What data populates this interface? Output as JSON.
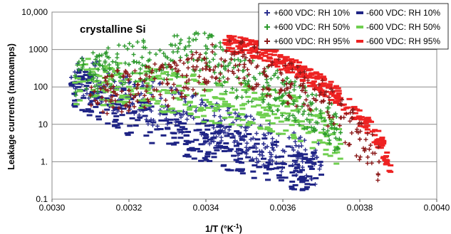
{
  "chart_data": {
    "type": "scatter",
    "title": "",
    "annotation": "crystalline Si",
    "xlabel": "1/T (°K",
    "xlabel_sup": "-1",
    "xlabel_end": ")",
    "ylabel": "Leakage currents (nanoamps)",
    "xlim": [
      0.003,
      0.004
    ],
    "ylim": [
      0.1,
      10000
    ],
    "yscale": "log",
    "grid": "horizontal",
    "legend_position": "top-right",
    "x_ticks": [
      "0.0030",
      "0.0032",
      "0.0034",
      "0.0036",
      "0.0038",
      "0.0040"
    ],
    "y_ticks": [
      "0.1",
      "1.",
      "10",
      "100",
      "1000",
      "10,000"
    ],
    "series": [
      {
        "name": "+600 VDC: RH 10%",
        "marker": "+",
        "color": "#2b2f8f",
        "x": [
          0.00305,
          0.00308,
          0.00312,
          0.00316,
          0.0032,
          0.00325,
          0.0033,
          0.00335,
          0.0034,
          0.00345,
          0.0035,
          0.00355,
          0.0036,
          0.00365,
          0.0037
        ],
        "y": [
          180,
          150,
          120,
          90,
          60,
          40,
          30,
          20,
          12,
          8,
          5,
          3,
          2,
          1.2,
          0.8
        ]
      },
      {
        "name": "-600 VDC: RH 10%",
        "marker": "-",
        "color": "#1f2485",
        "x": [
          0.00305,
          0.00308,
          0.00312,
          0.00316,
          0.0032,
          0.00325,
          0.0033,
          0.00335,
          0.0034,
          0.00345,
          0.0035,
          0.00355,
          0.0036,
          0.00365,
          0.0037
        ],
        "y": [
          120,
          80,
          50,
          35,
          20,
          12,
          8,
          5,
          3.5,
          2.5,
          1.8,
          1.2,
          0.9,
          0.6,
          0.45
        ]
      },
      {
        "name": "+600 VDC: RH 50%",
        "marker": "+",
        "color": "#2e9a2e",
        "x": [
          0.00306,
          0.0031,
          0.00315,
          0.0032,
          0.00325,
          0.0033,
          0.00335,
          0.0034,
          0.00345,
          0.0035,
          0.00355,
          0.0036,
          0.00365,
          0.0037,
          0.00375
        ],
        "y": [
          200,
          220,
          300,
          400,
          500,
          600,
          700,
          800,
          300,
          150,
          100,
          60,
          30,
          15,
          6
        ]
      },
      {
        "name": "-600 VDC: RH 50%",
        "marker": "-",
        "color": "#6fcf4f",
        "x": [
          0.00306,
          0.0031,
          0.00315,
          0.0032,
          0.00325,
          0.0033,
          0.00335,
          0.0034,
          0.00345,
          0.0035,
          0.00355,
          0.0036,
          0.00365,
          0.0037,
          0.00375
        ],
        "y": [
          130,
          150,
          120,
          100,
          90,
          80,
          60,
          45,
          40,
          35,
          28,
          20,
          12,
          6,
          3
        ]
      },
      {
        "name": "+600 VDC: RH 95%",
        "marker": "+",
        "color": "#8b1a1a",
        "x": [
          0.0031,
          0.0032,
          0.0033,
          0.00335,
          0.0034,
          0.00345,
          0.0035,
          0.00355,
          0.0036,
          0.00365,
          0.0037,
          0.00375,
          0.0038,
          0.00385
        ],
        "y": [
          60,
          80,
          120,
          200,
          300,
          500,
          400,
          250,
          150,
          80,
          40,
          15,
          4,
          1
        ]
      },
      {
        "name": "-600 VDC: RH 95%",
        "marker": "-",
        "color": "#ee2222",
        "x": [
          0.00345,
          0.0035,
          0.00355,
          0.0036,
          0.00365,
          0.0037,
          0.00375,
          0.0038,
          0.00385,
          0.00388
        ],
        "y": [
          1500,
          1200,
          800,
          450,
          250,
          120,
          50,
          15,
          4,
          0.8
        ]
      }
    ]
  }
}
